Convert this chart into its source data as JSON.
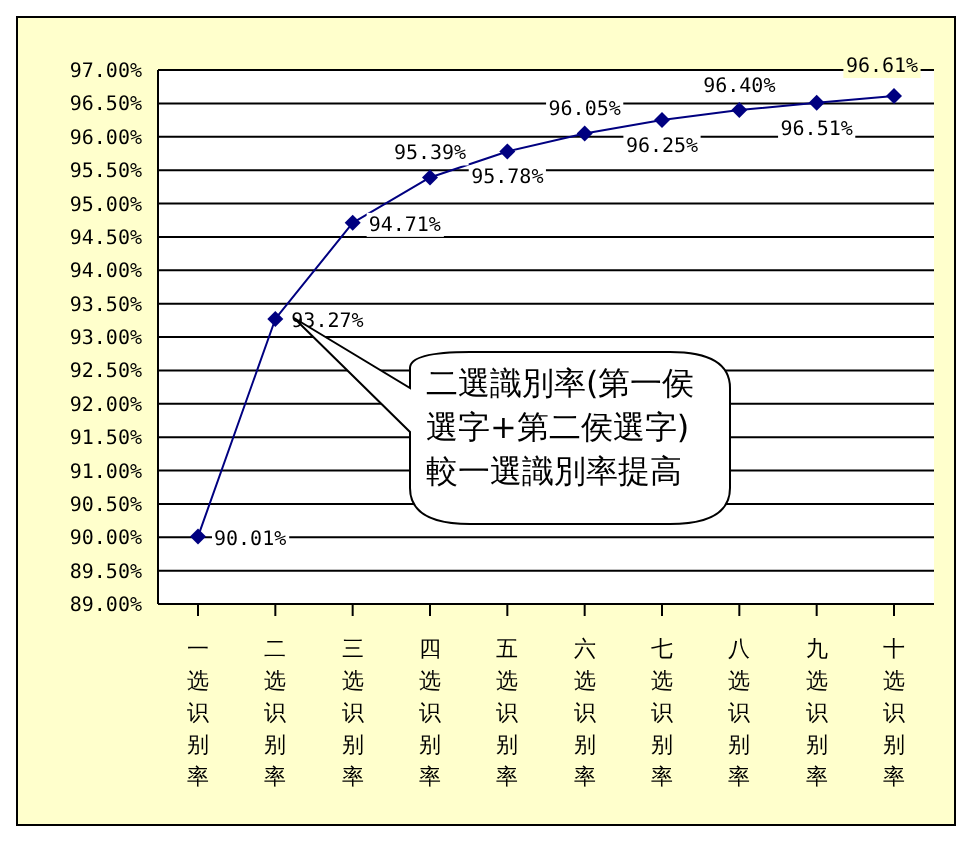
{
  "chart_data": {
    "type": "line",
    "categories": [
      "一选识别率",
      "二选识别率",
      "三选识别率",
      "四选识别率",
      "五选识别率",
      "六选识别率",
      "七选识别率",
      "八选识别率",
      "九选识别率",
      "十选识别率"
    ],
    "series": [
      {
        "color": "#000080",
        "values": [
          90.01,
          93.27,
          94.71,
          95.39,
          95.78,
          96.05,
          96.25,
          96.4,
          96.51,
          96.61
        ],
        "value_labels": [
          "90.01%",
          "93.27%",
          "94.71%",
          "95.39%",
          "95.78%",
          "96.05%",
          "96.25%",
          "96.40%",
          "96.51%",
          "96.61%"
        ]
      }
    ],
    "ylim": [
      89,
      97
    ],
    "yticks": [
      {
        "value": 89,
        "label": "89.00%"
      },
      {
        "value": 89.5,
        "label": "89.50%"
      },
      {
        "value": 90,
        "label": "90.00%"
      },
      {
        "value": 90.5,
        "label": "90.50%"
      },
      {
        "value": 91,
        "label": "91.00%"
      },
      {
        "value": 91.5,
        "label": "91.50%"
      },
      {
        "value": 92,
        "label": "92.00%"
      },
      {
        "value": 92.5,
        "label": "92.50%"
      },
      {
        "value": 93,
        "label": "93.00%"
      },
      {
        "value": 93.5,
        "label": "93.50%"
      },
      {
        "value": 94,
        "label": "94.00%"
      },
      {
        "value": 94.5,
        "label": "94.50%"
      },
      {
        "value": 95,
        "label": "95.00%"
      },
      {
        "value": 95.5,
        "label": "95.50%"
      },
      {
        "value": 96,
        "label": "96.00%"
      },
      {
        "value": 96.5,
        "label": "96.50%"
      },
      {
        "value": 97,
        "label": "97.00%"
      }
    ],
    "grid": "y",
    "marker": "diamond",
    "legend": false,
    "annotations": [
      "二選識別率(第一侯選字+第二侯選字)較一選識別率提高"
    ]
  }
}
